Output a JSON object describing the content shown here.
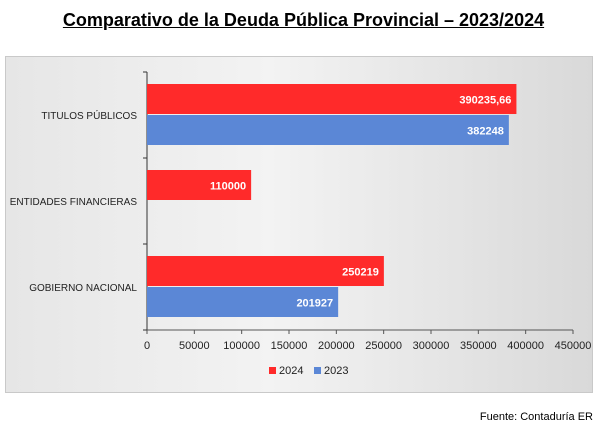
{
  "title": "Comparativo de la Deuda Pública Provincial – 2023/2024",
  "source": "Fuente: Contaduría ER",
  "chart_data": {
    "type": "bar",
    "orientation": "horizontal",
    "categories": [
      "TITULOS PÚBLICOS",
      "ENTIDADES FINANCIERAS",
      "GOBIERNO NACIONAL"
    ],
    "series": [
      {
        "name": "2024",
        "color": "#ff2a2a",
        "values": [
          390235.66,
          110000,
          250219
        ],
        "labels": [
          "390235,66",
          "110000",
          "250219"
        ]
      },
      {
        "name": "2023",
        "color": "#5b87d6",
        "values": [
          382248,
          null,
          201927
        ],
        "labels": [
          "382248",
          "",
          "201927"
        ]
      }
    ],
    "x_ticks": [
      "0",
      "50000",
      "100000",
      "150000",
      "200000",
      "250000",
      "300000",
      "350000",
      "400000",
      "450000"
    ],
    "xlim": [
      0,
      450000
    ],
    "grid": false,
    "legend_position": "bottom"
  }
}
